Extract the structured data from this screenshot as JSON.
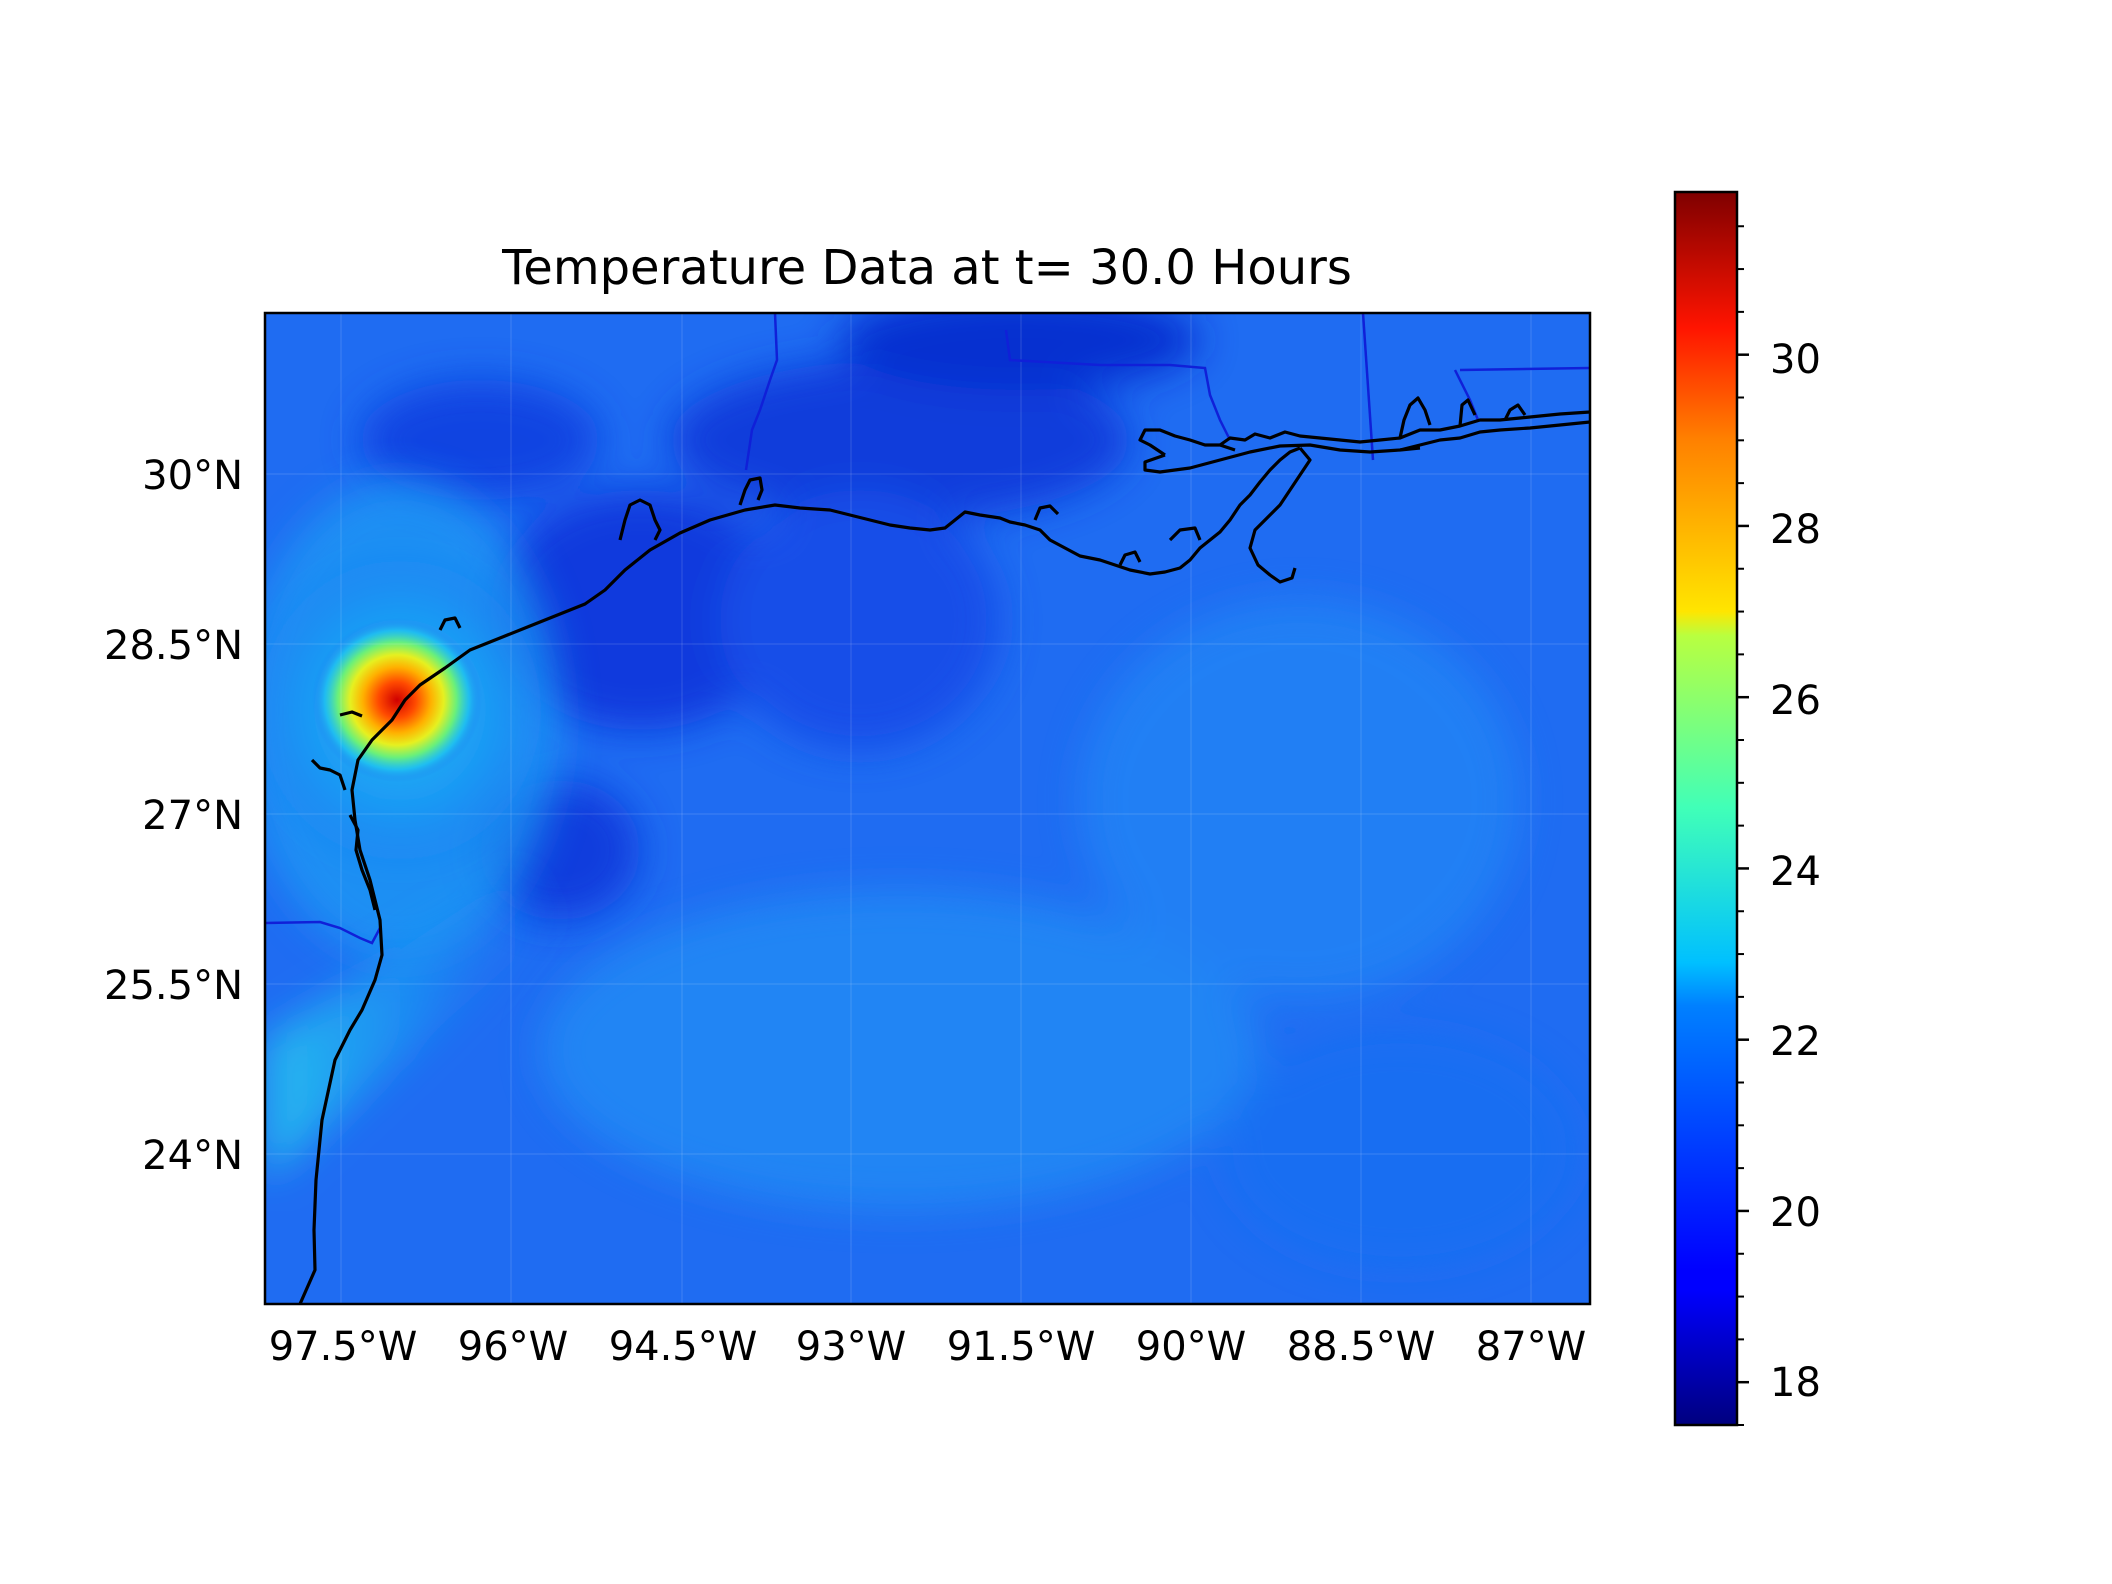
{
  "figure": {
    "title": "Temperature Data at t= 30.0 Hours"
  },
  "map": {
    "lat_ticks": [
      "30°N",
      "28.5°N",
      "27°N",
      "25.5°N",
      "24°N"
    ],
    "lon_ticks": [
      "97.5°W",
      "96°W",
      "94.5°W",
      "93°W",
      "91.5°W",
      "90°W",
      "88.5°W",
      "87°W"
    ],
    "lon_range": [
      -98.0,
      -86.5
    ],
    "lat_range": [
      22.8,
      31.5
    ],
    "colors": {
      "background_field": "#1f6cf2",
      "coastline": "#000000",
      "state_borders": "#1020d8"
    },
    "features": [
      "hurricane-core-near-texas-coast",
      "gulf-coastline",
      "state-borders"
    ]
  },
  "colorbar": {
    "ticks": [
      "30",
      "28",
      "26",
      "24",
      "22",
      "20",
      "18"
    ],
    "vmin": 17.5,
    "vmax": 31.9,
    "colormap": "jet"
  },
  "chart_data": {
    "type": "heatmap",
    "title": "Temperature Data at t= 30.0 Hours",
    "xlabel": "",
    "ylabel": "",
    "x_ticks": [
      "97.5°W",
      "96°W",
      "94.5°W",
      "93°W",
      "91.5°W",
      "90°W",
      "88.5°W",
      "87°W"
    ],
    "y_ticks": [
      "30°N",
      "28.5°N",
      "27°N",
      "25.5°N",
      "24°N"
    ],
    "colorbar_ticks": [
      18,
      20,
      22,
      24,
      26,
      28,
      30
    ],
    "colorbar_range": [
      17.5,
      31.9
    ],
    "grid": true,
    "hotspot": {
      "lon": -96.8,
      "lat": 28.0,
      "value": 30.5
    },
    "typical_value": 20.5
  }
}
